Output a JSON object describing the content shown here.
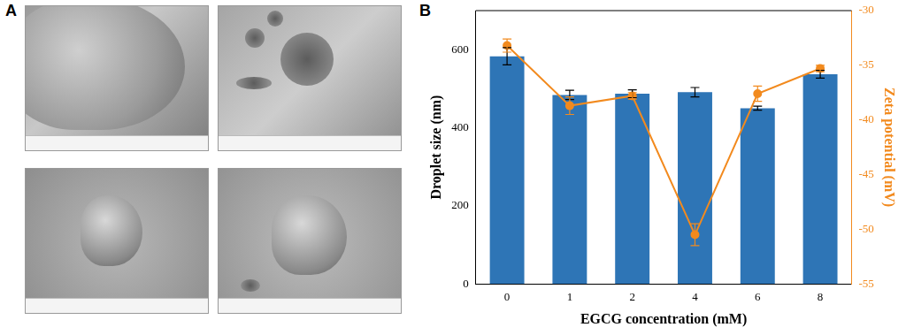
{
  "panel_labels": [
    "A",
    "B"
  ],
  "chart_data": {
    "type": "bar",
    "categories": [
      "0",
      "1",
      "2",
      "4",
      "6",
      "8"
    ],
    "x_label": "EGCG concentration (mM)",
    "y_label": "Droplet size (nm)",
    "y2_label": "Zeta potential (mV)",
    "ylim": [
      0,
      700
    ],
    "yticks": [
      0,
      200,
      400,
      600
    ],
    "y2lim": [
      -55,
      -30
    ],
    "y2ticks": [
      -55,
      -50,
      -45,
      -40,
      -35,
      -30
    ],
    "grid": false,
    "series": [
      {
        "type": "bar",
        "color": "#2e75b6",
        "values": [
          583,
          484,
          487,
          491,
          450,
          537
        ],
        "errors": [
          22,
          12,
          10,
          12,
          5,
          10
        ]
      },
      {
        "type": "line",
        "axis": "y2",
        "color": "#f28a1e",
        "marker": "circle",
        "line_style": "solid",
        "values": [
          -33.2,
          -38.7,
          -37.8,
          -50.5,
          -37.6,
          -35.3
        ],
        "errors": [
          0.6,
          0.8,
          0.3,
          1.0,
          0.7,
          0.3
        ]
      }
    ]
  }
}
